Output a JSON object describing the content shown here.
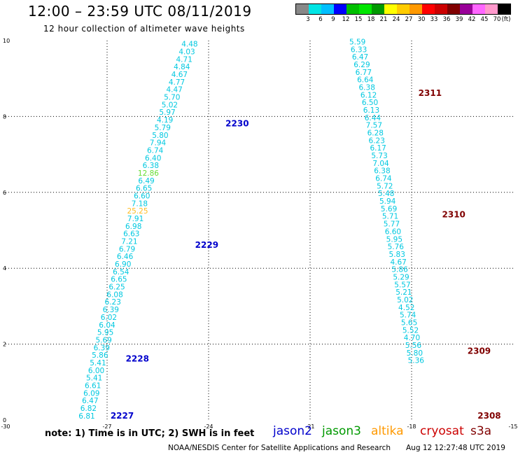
{
  "header": {
    "title": "12:00 – 23:59 UTC 08/11/2019",
    "subtitle": "12 hour collection of altimeter wave heights"
  },
  "footer": {
    "note": "note: 1) Time is in UTC; 2) SWH is in feet",
    "credit": "NOAA/NESDIS Center for Satellite Applications and Research",
    "timestamp": "Aug 12 12:27:48 UTC 2019"
  },
  "satellites": [
    {
      "name": "jason2",
      "color": "#0000cc"
    },
    {
      "name": "jason3",
      "color": "#009900"
    },
    {
      "name": "altika",
      "color": "#ff9900"
    },
    {
      "name": "cryosat",
      "color": "#cc0000"
    },
    {
      "name": "s3a",
      "color": "#800000"
    }
  ],
  "legend": {
    "colors": [
      "#888888",
      "#00e5e5",
      "#00bfff",
      "#0000ff",
      "#00bf00",
      "#00e600",
      "#009900",
      "#ffff00",
      "#ffcc00",
      "#ff9900",
      "#ff0000",
      "#cc0000",
      "#800000",
      "#990099",
      "#ff66ff",
      "#ff99cc",
      "#000000"
    ],
    "labels": [
      "3",
      "6",
      "9",
      "12",
      "15",
      "18",
      "21",
      "24",
      "27",
      "30",
      "33",
      "36",
      "39",
      "42",
      "45",
      "70",
      "(ft)"
    ]
  },
  "chart_data": {
    "type": "scatter",
    "xlim": [
      -30,
      -15
    ],
    "ylim": [
      0,
      10
    ],
    "x_ticks": [
      -30,
      -27,
      -24,
      -21,
      -18,
      -15
    ],
    "y_ticks": [
      0,
      2,
      4,
      6,
      8,
      10
    ],
    "grid": true,
    "value_colors": {
      "default": "#00c8e0",
      "high_12": "#66dd33",
      "high_25": "#ffbb22"
    },
    "tracks": [
      {
        "name": "track1",
        "points": [
          {
            "x": -27.6,
            "y": 0.04,
            "v": "6.81"
          },
          {
            "x": -27.55,
            "y": 0.24,
            "v": "6.82"
          },
          {
            "x": -27.5,
            "y": 0.44,
            "v": "6.47"
          },
          {
            "x": -27.46,
            "y": 0.64,
            "v": "6.09"
          },
          {
            "x": -27.42,
            "y": 0.84,
            "v": "6.61"
          },
          {
            "x": -27.38,
            "y": 1.04,
            "v": "5.41"
          },
          {
            "x": -27.32,
            "y": 1.24,
            "v": "6.00"
          },
          {
            "x": -27.27,
            "y": 1.44,
            "v": "5.41"
          },
          {
            "x": -27.21,
            "y": 1.64,
            "v": "5.86"
          },
          {
            "x": -27.16,
            "y": 1.84,
            "v": "6.39"
          },
          {
            "x": -27.1,
            "y": 2.04,
            "v": "5.69"
          },
          {
            "x": -27.05,
            "y": 2.24,
            "v": "5.95"
          },
          {
            "x": -27.0,
            "y": 2.44,
            "v": "6.04"
          },
          {
            "x": -26.95,
            "y": 2.64,
            "v": "6.02"
          },
          {
            "x": -26.89,
            "y": 2.84,
            "v": "6.39"
          },
          {
            "x": -26.83,
            "y": 3.04,
            "v": "6.23"
          },
          {
            "x": -26.77,
            "y": 3.24,
            "v": "6.08"
          },
          {
            "x": -26.71,
            "y": 3.44,
            "v": "6.25"
          },
          {
            "x": -26.65,
            "y": 3.64,
            "v": "6.65"
          },
          {
            "x": -26.59,
            "y": 3.84,
            "v": "6.54"
          },
          {
            "x": -26.53,
            "y": 4.04,
            "v": "6.90"
          },
          {
            "x": -26.47,
            "y": 4.24,
            "v": "6.46"
          },
          {
            "x": -26.41,
            "y": 4.44,
            "v": "6.79"
          },
          {
            "x": -26.34,
            "y": 4.64,
            "v": "7.21"
          },
          {
            "x": -26.28,
            "y": 4.84,
            "v": "6.63"
          },
          {
            "x": -26.22,
            "y": 5.04,
            "v": "6.98"
          },
          {
            "x": -26.16,
            "y": 5.24,
            "v": "7.91"
          },
          {
            "x": -26.1,
            "y": 5.44,
            "v": "25.25"
          },
          {
            "x": -26.04,
            "y": 5.64,
            "v": "7.18"
          },
          {
            "x": -25.97,
            "y": 5.84,
            "v": "6.60"
          },
          {
            "x": -25.91,
            "y": 6.04,
            "v": "6.65"
          },
          {
            "x": -25.84,
            "y": 6.24,
            "v": "6.49"
          },
          {
            "x": -25.78,
            "y": 6.44,
            "v": "12.86"
          },
          {
            "x": -25.71,
            "y": 6.64,
            "v": "6.38"
          },
          {
            "x": -25.64,
            "y": 6.84,
            "v": "6.40"
          },
          {
            "x": -25.58,
            "y": 7.04,
            "v": "6.74"
          },
          {
            "x": -25.5,
            "y": 7.24,
            "v": "7.94"
          },
          {
            "x": -25.43,
            "y": 7.44,
            "v": "5.80"
          },
          {
            "x": -25.36,
            "y": 7.64,
            "v": "5.79"
          },
          {
            "x": -25.29,
            "y": 7.84,
            "v": "4.19"
          },
          {
            "x": -25.22,
            "y": 8.04,
            "v": "5.97"
          },
          {
            "x": -25.15,
            "y": 8.24,
            "v": "5.02"
          },
          {
            "x": -25.08,
            "y": 8.44,
            "v": "5.70"
          },
          {
            "x": -25.01,
            "y": 8.64,
            "v": "4.47"
          },
          {
            "x": -24.94,
            "y": 8.84,
            "v": "4.77"
          },
          {
            "x": -24.86,
            "y": 9.04,
            "v": "4.67"
          },
          {
            "x": -24.79,
            "y": 9.24,
            "v": "4.84"
          },
          {
            "x": -24.72,
            "y": 9.44,
            "v": "4.71"
          },
          {
            "x": -24.64,
            "y": 9.64,
            "v": "4.03"
          },
          {
            "x": -24.56,
            "y": 9.84,
            "v": "4.48"
          }
        ]
      },
      {
        "name": "track2",
        "points": [
          {
            "x": -19.6,
            "y": 9.9,
            "v": "5.59"
          },
          {
            "x": -19.56,
            "y": 9.7,
            "v": "6.33"
          },
          {
            "x": -19.52,
            "y": 9.5,
            "v": "6.47"
          },
          {
            "x": -19.47,
            "y": 9.3,
            "v": "6.29"
          },
          {
            "x": -19.42,
            "y": 9.1,
            "v": "6.77"
          },
          {
            "x": -19.37,
            "y": 8.9,
            "v": "6.64"
          },
          {
            "x": -19.32,
            "y": 8.7,
            "v": "6.38"
          },
          {
            "x": -19.27,
            "y": 8.5,
            "v": "6.12"
          },
          {
            "x": -19.23,
            "y": 8.3,
            "v": "6.50"
          },
          {
            "x": -19.19,
            "y": 8.1,
            "v": "6.13"
          },
          {
            "x": -19.15,
            "y": 7.9,
            "v": "6.44"
          },
          {
            "x": -19.11,
            "y": 7.7,
            "v": "7.57"
          },
          {
            "x": -19.07,
            "y": 7.5,
            "v": "6.28"
          },
          {
            "x": -19.03,
            "y": 7.3,
            "v": "6.23"
          },
          {
            "x": -18.99,
            "y": 7.1,
            "v": "6.17"
          },
          {
            "x": -18.95,
            "y": 6.9,
            "v": "5.73"
          },
          {
            "x": -18.91,
            "y": 6.7,
            "v": "7.04"
          },
          {
            "x": -18.87,
            "y": 6.5,
            "v": "6.38"
          },
          {
            "x": -18.83,
            "y": 6.3,
            "v": "6.74"
          },
          {
            "x": -18.79,
            "y": 6.1,
            "v": "5.72"
          },
          {
            "x": -18.75,
            "y": 5.9,
            "v": "5.48"
          },
          {
            "x": -18.71,
            "y": 5.7,
            "v": "5.94"
          },
          {
            "x": -18.67,
            "y": 5.5,
            "v": "5.69"
          },
          {
            "x": -18.63,
            "y": 5.3,
            "v": "5.71"
          },
          {
            "x": -18.59,
            "y": 5.1,
            "v": "5.77"
          },
          {
            "x": -18.55,
            "y": 4.9,
            "v": "6.60"
          },
          {
            "x": -18.51,
            "y": 4.7,
            "v": "5.95"
          },
          {
            "x": -18.47,
            "y": 4.5,
            "v": "5.76"
          },
          {
            "x": -18.43,
            "y": 4.3,
            "v": "5.83"
          },
          {
            "x": -18.39,
            "y": 4.1,
            "v": "4.67"
          },
          {
            "x": -18.35,
            "y": 3.9,
            "v": "5.86"
          },
          {
            "x": -18.31,
            "y": 3.7,
            "v": "5.29"
          },
          {
            "x": -18.27,
            "y": 3.5,
            "v": "5.57"
          },
          {
            "x": -18.23,
            "y": 3.3,
            "v": "5.21"
          },
          {
            "x": -18.19,
            "y": 3.1,
            "v": "5.02"
          },
          {
            "x": -18.15,
            "y": 2.9,
            "v": "4.52"
          },
          {
            "x": -18.11,
            "y": 2.7,
            "v": "5.74"
          },
          {
            "x": -18.07,
            "y": 2.5,
            "v": "5.65"
          },
          {
            "x": -18.03,
            "y": 2.3,
            "v": "5.52"
          },
          {
            "x": -17.99,
            "y": 2.1,
            "v": "4.70"
          },
          {
            "x": -17.95,
            "y": 1.9,
            "v": "5.56"
          },
          {
            "x": -17.91,
            "y": 1.7,
            "v": "5.80"
          },
          {
            "x": -17.87,
            "y": 1.5,
            "v": "5.36"
          }
        ]
      }
    ],
    "pass_labels": [
      {
        "text": "2227",
        "x": -26.9,
        "y": 0.04,
        "color": "#0000cc"
      },
      {
        "text": "2228",
        "x": -26.45,
        "y": 1.54,
        "color": "#0000cc"
      },
      {
        "text": "2229",
        "x": -24.4,
        "y": 4.54,
        "color": "#0000cc"
      },
      {
        "text": "2230",
        "x": -23.5,
        "y": 7.74,
        "color": "#0000cc"
      },
      {
        "text": "2311",
        "x": -17.8,
        "y": 8.54,
        "color": "#800000"
      },
      {
        "text": "2310",
        "x": -17.1,
        "y": 5.34,
        "color": "#800000"
      },
      {
        "text": "2309",
        "x": -16.35,
        "y": 1.74,
        "color": "#800000"
      },
      {
        "text": "2308",
        "x": -16.05,
        "y": 0.04,
        "color": "#800000"
      }
    ]
  }
}
